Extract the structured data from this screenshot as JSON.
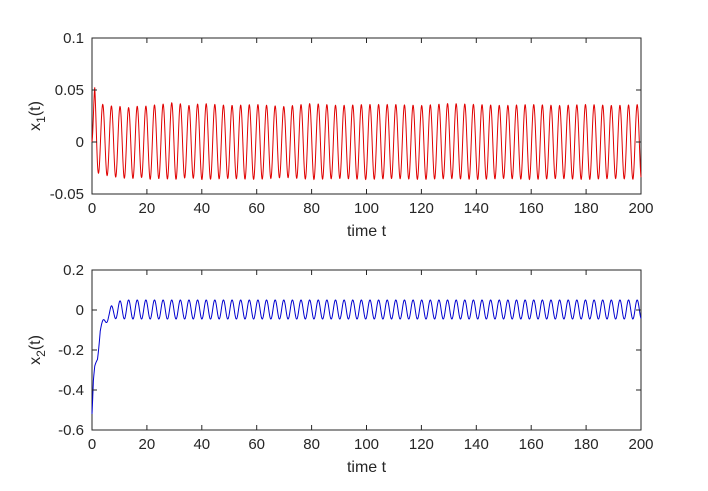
{
  "chart_data": [
    {
      "type": "line",
      "title": "",
      "xlabel": "time t",
      "ylabel_main": "x",
      "ylabel_sub": "1",
      "ylabel_tail": "(t)",
      "xlim": [
        0,
        200
      ],
      "ylim": [
        -0.05,
        0.1
      ],
      "xticks": [
        0,
        20,
        40,
        60,
        80,
        100,
        120,
        140,
        160,
        180,
        200
      ],
      "yticks": [
        -0.05,
        0,
        0.05,
        0.1
      ],
      "ytick_labels": [
        "-0.05",
        "0",
        "0.05",
        "0.1"
      ],
      "grid": false,
      "series": [
        {
          "color": "#e00000",
          "x": [
            0,
            1,
            2,
            4,
            6,
            8,
            10,
            12,
            14,
            16,
            18,
            20,
            25,
            30,
            35,
            40,
            50,
            60,
            70,
            80,
            90,
            100,
            110,
            120,
            130,
            140,
            150,
            160,
            170,
            180,
            190,
            200
          ],
          "y_upper": [
            0,
            0.056,
            0.04,
            0.036,
            0.033,
            0.036,
            0.034,
            0.035,
            0.032,
            0.035,
            0.032,
            0.035,
            0.036,
            0.038,
            0.035,
            0.037,
            0.035,
            0.036,
            0.034,
            0.037,
            0.035,
            0.036,
            0.036,
            0.035,
            0.037,
            0.036,
            0.035,
            0.036,
            0.035,
            0.036,
            0.035,
            0.036
          ],
          "y_lower": [
            0,
            -0.02,
            -0.03,
            -0.03,
            -0.033,
            -0.034,
            -0.033,
            -0.035,
            -0.034,
            -0.036,
            -0.034,
            -0.036,
            -0.035,
            -0.036,
            -0.034,
            -0.036,
            -0.035,
            -0.036,
            -0.034,
            -0.036,
            -0.035,
            -0.036,
            -0.035,
            -0.036,
            -0.035,
            -0.036,
            -0.035,
            -0.036,
            -0.035,
            -0.036,
            -0.035,
            -0.036
          ],
          "oscillation_period": 3.14
        }
      ]
    },
    {
      "type": "line",
      "title": "",
      "xlabel": "time t",
      "ylabel_main": "x",
      "ylabel_sub": "2",
      "ylabel_tail": "(t)",
      "xlim": [
        0,
        200
      ],
      "ylim": [
        -0.6,
        0.2
      ],
      "xticks": [
        0,
        20,
        40,
        60,
        80,
        100,
        120,
        140,
        160,
        180,
        200
      ],
      "yticks": [
        -0.6,
        -0.4,
        -0.2,
        0,
        0.2
      ],
      "ytick_labels": [
        "-0.6",
        "-0.4",
        "-0.2",
        "0",
        "0.2"
      ],
      "grid": false,
      "series": [
        {
          "color": "#0000d0",
          "x": [
            0,
            0.5,
            1,
            2,
            3,
            4,
            5,
            6,
            7,
            8,
            10,
            12,
            15,
            20,
            30,
            40,
            60,
            80,
            100,
            120,
            140,
            160,
            180,
            200
          ],
          "y_upper": [
            -0.52,
            -0.35,
            -0.28,
            -0.22,
            -0.08,
            -0.05,
            -0.03,
            0.01,
            0.02,
            0.03,
            0.045,
            0.05,
            0.05,
            0.05,
            0.05,
            0.05,
            0.05,
            0.05,
            0.05,
            0.05,
            0.05,
            0.05,
            0.05,
            0.05
          ],
          "y_lower": [
            -0.52,
            -0.4,
            -0.3,
            -0.25,
            -0.12,
            -0.08,
            -0.07,
            -0.05,
            -0.06,
            -0.045,
            -0.04,
            -0.045,
            -0.045,
            -0.045,
            -0.045,
            -0.045,
            -0.045,
            -0.045,
            -0.045,
            -0.045,
            -0.045,
            -0.045,
            -0.045,
            -0.045
          ],
          "oscillation_period": 3.14
        }
      ]
    }
  ]
}
